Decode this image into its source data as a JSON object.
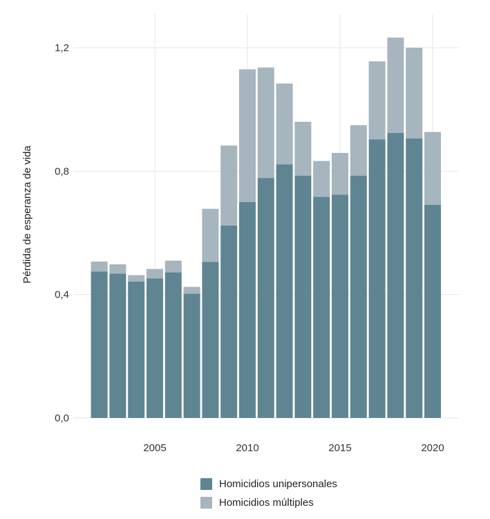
{
  "chart_data": {
    "type": "bar",
    "stacked": true,
    "title": "",
    "xlabel": "",
    "ylabel": "Pérdida de esperanza de vida",
    "x": [
      2002,
      2003,
      2004,
      2005,
      2006,
      2007,
      2008,
      2009,
      2010,
      2011,
      2012,
      2013,
      2014,
      2015,
      2016,
      2017,
      2018,
      2019,
      2020
    ],
    "xticks": [
      2005,
      2010,
      2015,
      2020
    ],
    "xtick_labels": [
      "2005",
      "2010",
      "2015",
      "2020"
    ],
    "ylim": [
      0,
      1.2
    ],
    "yticks": [
      0,
      0.4,
      0.8,
      1.2
    ],
    "ytick_labels": [
      "0,0",
      "0,4",
      "0,8",
      "1,2"
    ],
    "grid": true,
    "legend_position": "bottom",
    "series": [
      {
        "name": "Homicidios unipersonales",
        "color": "#5e8591",
        "values": [
          0.475,
          0.468,
          0.442,
          0.452,
          0.472,
          0.403,
          0.506,
          0.624,
          0.7,
          0.778,
          0.822,
          0.785,
          0.717,
          0.724,
          0.785,
          0.903,
          0.924,
          0.906,
          0.691
        ]
      },
      {
        "name": "Homicidios múltiples",
        "color": "#a6b5be",
        "values": [
          0.032,
          0.03,
          0.021,
          0.031,
          0.038,
          0.022,
          0.172,
          0.259,
          0.43,
          0.358,
          0.262,
          0.175,
          0.116,
          0.135,
          0.164,
          0.253,
          0.309,
          0.294,
          0.236
        ]
      }
    ]
  }
}
